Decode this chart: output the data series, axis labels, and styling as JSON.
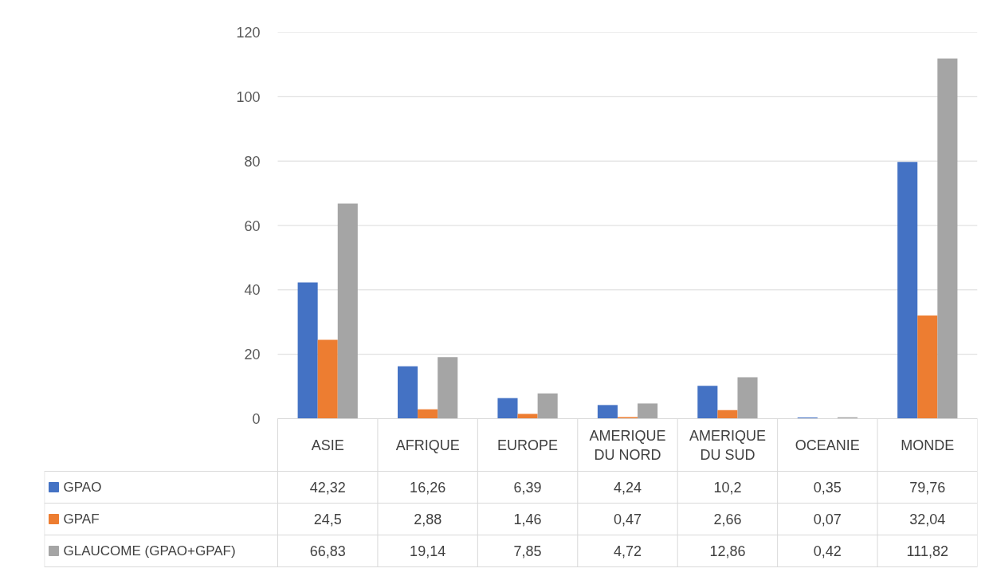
{
  "chart_data": {
    "type": "bar",
    "categories": [
      "ASIE",
      "AFRIQUE",
      "EUROPE",
      "AMERIQUE DU NORD",
      "AMERIQUE DU SUD",
      "OCEANIE",
      "MONDE"
    ],
    "series": [
      {
        "name": "GPAO",
        "color": "#4472c4",
        "values": [
          42.32,
          16.26,
          6.39,
          4.24,
          10.2,
          0.35,
          79.76
        ],
        "value_labels": [
          "42,32",
          "16,26",
          "6,39",
          "4,24",
          "10,2",
          "0,35",
          "79,76"
        ]
      },
      {
        "name": "GPAF",
        "color": "#ed7d31",
        "values": [
          24.5,
          2.88,
          1.46,
          0.47,
          2.66,
          0.07,
          32.04
        ],
        "value_labels": [
          "24,5",
          "2,88",
          "1,46",
          "0,47",
          "2,66",
          "0,07",
          "32,04"
        ]
      },
      {
        "name": "GLAUCOME (GPAO+GPAF)",
        "color": "#a5a5a5",
        "values": [
          66.83,
          19.14,
          7.85,
          4.72,
          12.86,
          0.42,
          111.82
        ],
        "value_labels": [
          "66,83",
          "19,14",
          "7,85",
          "4,72",
          "12,86",
          "0,42",
          "111,82"
        ]
      }
    ],
    "ylim": [
      0,
      120
    ],
    "yticks": [
      0,
      20,
      40,
      60,
      80,
      100,
      120
    ],
    "grid": "y",
    "legend": "bottom"
  }
}
